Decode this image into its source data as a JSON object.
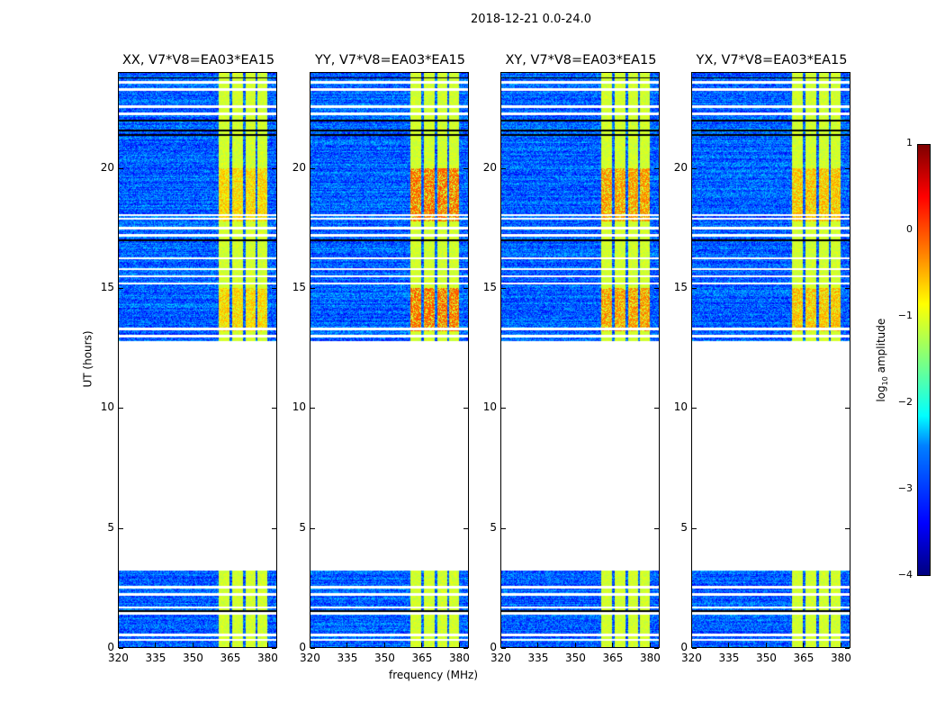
{
  "suptitle": "2018-12-21 0.0-24.0",
  "chart_data": {
    "type": "heatmap",
    "xlabel": "frequency (MHz)",
    "ylabel": "UT (hours)",
    "xlim": [
      320,
      384
    ],
    "ylim": [
      0,
      24
    ],
    "xticks": [
      "320",
      "335",
      "350",
      "365",
      "380"
    ],
    "yticks": [
      "0",
      "5",
      "10",
      "15",
      "20"
    ],
    "panels": [
      {
        "title": "XX, V7*V8=EA03*EA15",
        "hot_level": -0.6
      },
      {
        "title": "YY, V7*V8=EA03*EA15",
        "hot_level": -0.1
      },
      {
        "title": "XY, V7*V8=EA03*EA15",
        "hot_level": -0.3
      },
      {
        "title": "YX, V7*V8=EA03*EA15",
        "hot_level": -0.5
      }
    ],
    "time_ranges_with_data": [
      [
        0,
        3.2
      ],
      [
        12.8,
        16.2
      ],
      [
        16.3,
        24
      ]
    ],
    "flagged_times": [
      0.3,
      0.5,
      1.4,
      1.65,
      2.2,
      2.5,
      13.0,
      13.3,
      15.2,
      15.5,
      15.8,
      16.25,
      17.2,
      17.5,
      17.9,
      18.05,
      22.3,
      22.6,
      23.3,
      23.6
    ],
    "dropout_times": [
      1.5,
      17.0,
      21.4,
      21.6,
      22.0,
      23.8
    ],
    "band_segments_mhz": [
      [
        360.5,
        365
      ],
      [
        366,
        370.5
      ],
      [
        371.5,
        375.5
      ],
      [
        376.5,
        380.5
      ]
    ],
    "hot_time_ranges": [
      [
        13.2,
        15
      ],
      [
        17.8,
        20
      ]
    ],
    "background_level": -2.9,
    "band_level": -1.1,
    "colorbar": {
      "label": "log10 amplitude",
      "label_main": "log",
      "label_sub": "10",
      "label_tail": " amplitude",
      "ticks": [
        "1",
        "0",
        "−1",
        "−2",
        "−3",
        "−4"
      ],
      "range": [
        -4,
        1
      ],
      "colormap": "jet"
    }
  }
}
